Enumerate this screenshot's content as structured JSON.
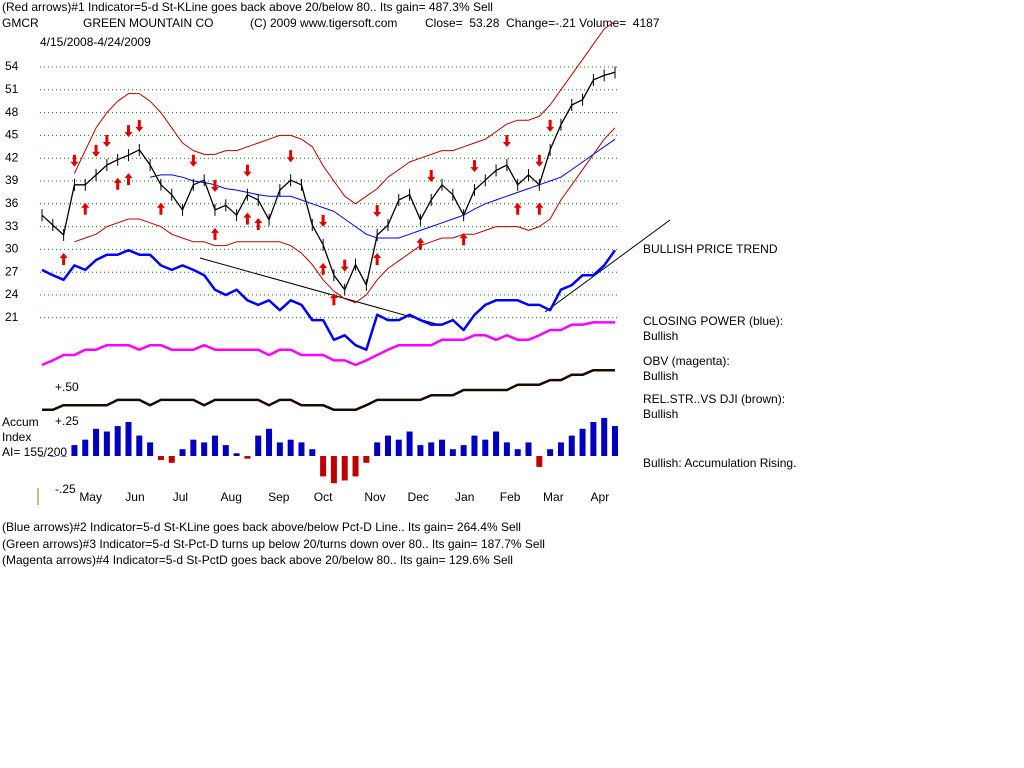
{
  "header": {
    "line1": "(Red arrows)#1 Indicator=5-d St-KLine goes back above 20/below 80.. Its gain= 487.3% Sell",
    "symbol": "GMCR",
    "company": "GREEN MOUNTAIN CO",
    "copyright": "(C) 2009 www.tigersoft.com",
    "quote": "Close=  53.28  Change=-.21 Volume=  4187",
    "date_range": "4/15/2008-4/24/2009"
  },
  "chart_data": {
    "type": "stock",
    "xlim": [
      0,
      53
    ],
    "xticks": [
      {
        "value": 4.5,
        "label": "May"
      },
      {
        "value": 8.6,
        "label": "Jun"
      },
      {
        "value": 12.8,
        "label": "Jul"
      },
      {
        "value": 17.5,
        "label": "Aug"
      },
      {
        "value": 21.9,
        "label": "Sep"
      },
      {
        "value": 26.0,
        "label": "Oct"
      },
      {
        "value": 30.8,
        "label": "Nov"
      },
      {
        "value": 34.8,
        "label": "Dec"
      },
      {
        "value": 39.1,
        "label": "Jan"
      },
      {
        "value": 43.3,
        "label": "Feb"
      },
      {
        "value": 47.3,
        "label": "Mar"
      },
      {
        "value": 51.6,
        "label": "Apr"
      }
    ],
    "ylim": [
      8,
      60
    ],
    "yticks": [
      54,
      51,
      48,
      45,
      42,
      39,
      36,
      33,
      30,
      27,
      24,
      21
    ],
    "grid": true,
    "trend_label": "BULLISH PRICE TREND",
    "series": [
      {
        "color": "#000000",
        "width": 1.3,
        "values": [
          34.5,
          33.2,
          31.9,
          38.5,
          38.5,
          39.8,
          41.1,
          41.8,
          42.4,
          43.1,
          41.1,
          38.5,
          37.2,
          35.2,
          38.5,
          39.1,
          35.2,
          35.8,
          34.5,
          37.2,
          36.5,
          33.9,
          37.8,
          39.1,
          38.5,
          33.2,
          30.6,
          26.6,
          24.7,
          28.0,
          25.3,
          31.9,
          33.2,
          36.5,
          37.2,
          33.9,
          36.5,
          38.5,
          37.2,
          34.5,
          37.8,
          39.1,
          40.4,
          41.1,
          38.5,
          39.8,
          38.5,
          43.1,
          46.4,
          49.0,
          49.7,
          52.3,
          52.9,
          53.3
        ]
      },
      {
        "color": "#c00000",
        "width": 1,
        "values": [
          null,
          null,
          null,
          40,
          43,
          46,
          48,
          49.5,
          50.5,
          50.5,
          49.5,
          48,
          46,
          44,
          43,
          42.5,
          42.5,
          43,
          43,
          43.5,
          44,
          44.5,
          45,
          45,
          44.5,
          43.5,
          41,
          39,
          37,
          36,
          37,
          38,
          39.5,
          40.5,
          41.5,
          42,
          42.5,
          43,
          43,
          43.5,
          44,
          44.5,
          45.5,
          46.5,
          47,
          47,
          47.5,
          49,
          51,
          53,
          55,
          57,
          59,
          60
        ]
      },
      {
        "color": "#c00000",
        "width": 1,
        "values": [
          null,
          null,
          null,
          31,
          31.5,
          32,
          33,
          33.5,
          34,
          34,
          33.5,
          33,
          32,
          31.5,
          31,
          31,
          30.5,
          30.5,
          31,
          31,
          31,
          31,
          31,
          30.5,
          29.5,
          28,
          26,
          24.5,
          23.5,
          23,
          24,
          26,
          27.5,
          28.5,
          29.5,
          30.5,
          31,
          31.5,
          31.5,
          32,
          32,
          32.5,
          33,
          33,
          33,
          32.5,
          33,
          34,
          36.5,
          38.5,
          40.5,
          42.5,
          44.5,
          46
        ]
      },
      {
        "color": "#0000ff",
        "width": 1,
        "values": [
          null,
          null,
          null,
          null,
          null,
          null,
          null,
          null,
          null,
          null,
          39.5,
          39.8,
          39.8,
          39.5,
          39,
          38.8,
          38.5,
          38,
          37.8,
          37.5,
          37.2,
          37,
          37,
          37,
          36.5,
          36,
          35.5,
          35,
          34,
          33,
          32,
          31.5,
          31.5,
          31.5,
          32,
          32.5,
          33,
          33.5,
          34,
          34.5,
          35.3,
          36,
          36.5,
          37,
          37.5,
          38,
          38.5,
          39,
          39.5,
          40.5,
          41.5,
          42.5,
          43.5,
          44.5
        ]
      },
      {
        "name": "CLOSING POWER (blue):",
        "status": "Bullish",
        "color": "#0000ff",
        "width": 2.5,
        "values": [
          27.3,
          26.6,
          26.0,
          27.9,
          27.3,
          28.6,
          29.3,
          29.3,
          29.9,
          29.3,
          29.3,
          27.9,
          27.3,
          27.9,
          27.3,
          26.6,
          24.7,
          24.0,
          24.7,
          23.3,
          22.7,
          23.3,
          22.0,
          23.3,
          22.7,
          20.7,
          20.7,
          18.1,
          18.7,
          17.4,
          16.8,
          21.4,
          20.7,
          20.7,
          21.4,
          20.7,
          20.1,
          20.1,
          20.7,
          19.4,
          21.4,
          22.7,
          23.3,
          23.3,
          23.3,
          22.7,
          22.7,
          22.0,
          24.7,
          25.3,
          26.6,
          26.6,
          27.9,
          29.9
        ]
      },
      {
        "name": "OBV (magenta):",
        "status": "Bullish",
        "color": "#ff00ff",
        "width": 2.5,
        "values": [
          14.8,
          15.4,
          16.1,
          16.1,
          16.8,
          16.8,
          17.4,
          17.4,
          17.4,
          16.8,
          17.4,
          17.4,
          16.8,
          16.8,
          16.8,
          17.4,
          16.8,
          16.8,
          16.8,
          16.8,
          16.8,
          16.1,
          16.8,
          16.8,
          16.1,
          16.1,
          16.1,
          15.4,
          15.4,
          14.8,
          15.4,
          16.1,
          16.8,
          17.4,
          17.4,
          17.4,
          17.4,
          18.1,
          18.1,
          18.1,
          18.7,
          18.7,
          18.1,
          18.7,
          18.1,
          18.1,
          18.7,
          19.4,
          19.4,
          20.1,
          20.1,
          20.4,
          20.4,
          20.4
        ]
      },
      {
        "name": "REL.STR..VS DJI (brown):",
        "status": "Bullish",
        "color": "#1a0a00",
        "width": 2.5,
        "values": [
          8.9,
          8.9,
          9.5,
          9.5,
          9.5,
          9.5,
          9.5,
          10.2,
          10.2,
          10.2,
          9.5,
          10.2,
          10.2,
          10.2,
          10.2,
          9.5,
          10.2,
          10.2,
          10.2,
          10.2,
          10.2,
          9.5,
          10.2,
          10.2,
          9.5,
          9.5,
          9.5,
          8.9,
          8.9,
          8.9,
          9.5,
          10.2,
          10.2,
          10.2,
          10.2,
          10.2,
          10.8,
          10.8,
          10.8,
          11.5,
          11.5,
          11.5,
          11.5,
          11.5,
          12.2,
          12.2,
          12.2,
          12.8,
          12.8,
          13.5,
          13.5,
          14.1,
          14.1,
          14.1
        ]
      }
    ],
    "signals": {
      "color": "#e00000",
      "buy": [
        2,
        4,
        7,
        8,
        11,
        16,
        19,
        20,
        26,
        27,
        31,
        35,
        39,
        44,
        46
      ],
      "sell": [
        3,
        5,
        6,
        8,
        9,
        14,
        16,
        19,
        23,
        26,
        28,
        31,
        36,
        40,
        43,
        46,
        47
      ]
    },
    "accum": {
      "label_lines": [
        "Accum",
        "Index"
      ],
      "ai": "AI= 155/200",
      "status": "Bullish: Accumulation Rising.",
      "positive_color": "#0000c0",
      "negative_color": "#c00000",
      "y2lim": [
        -0.3,
        0.55
      ],
      "y2ticks": [
        {
          "value": 0.5,
          "label": "+.50"
        },
        {
          "value": 0.25,
          "label": "+.25"
        },
        {
          "value": -0.25,
          "label": "-.25"
        }
      ],
      "values": [
        0,
        0,
        0,
        0.08,
        0.12,
        0.2,
        0.18,
        0.22,
        0.25,
        0.15,
        0.1,
        -0.03,
        -0.05,
        0.05,
        0.12,
        0.1,
        0.15,
        0.08,
        0.02,
        -0.02,
        0.15,
        0.2,
        0.1,
        0.12,
        0.1,
        0.05,
        -0.15,
        -0.2,
        -0.18,
        -0.15,
        -0.05,
        0.1,
        0.15,
        0.12,
        0.18,
        0.08,
        0.1,
        0.12,
        0.05,
        0.08,
        0.15,
        0.12,
        0.18,
        0.1,
        0.05,
        0.1,
        -0.08,
        0.05,
        0.1,
        0.15,
        0.2,
        0.25,
        0.28,
        0.22
      ]
    }
  },
  "footer": [
    "(Blue arrows)#2 Indicator=5-d St-KLine goes back above/below Pct-D Line.. Its gain= 264.4% Sell",
    "(Green arrows)#3 Indicator=5-d St-Pct-D turns up below 20/turns down over 80.. Its gain= 187.7% Sell",
    "(Magenta arrows)#4 Indicator=5-d St-PctD goes back above 20/below 80.. Its gain= 129.6% Sell"
  ]
}
